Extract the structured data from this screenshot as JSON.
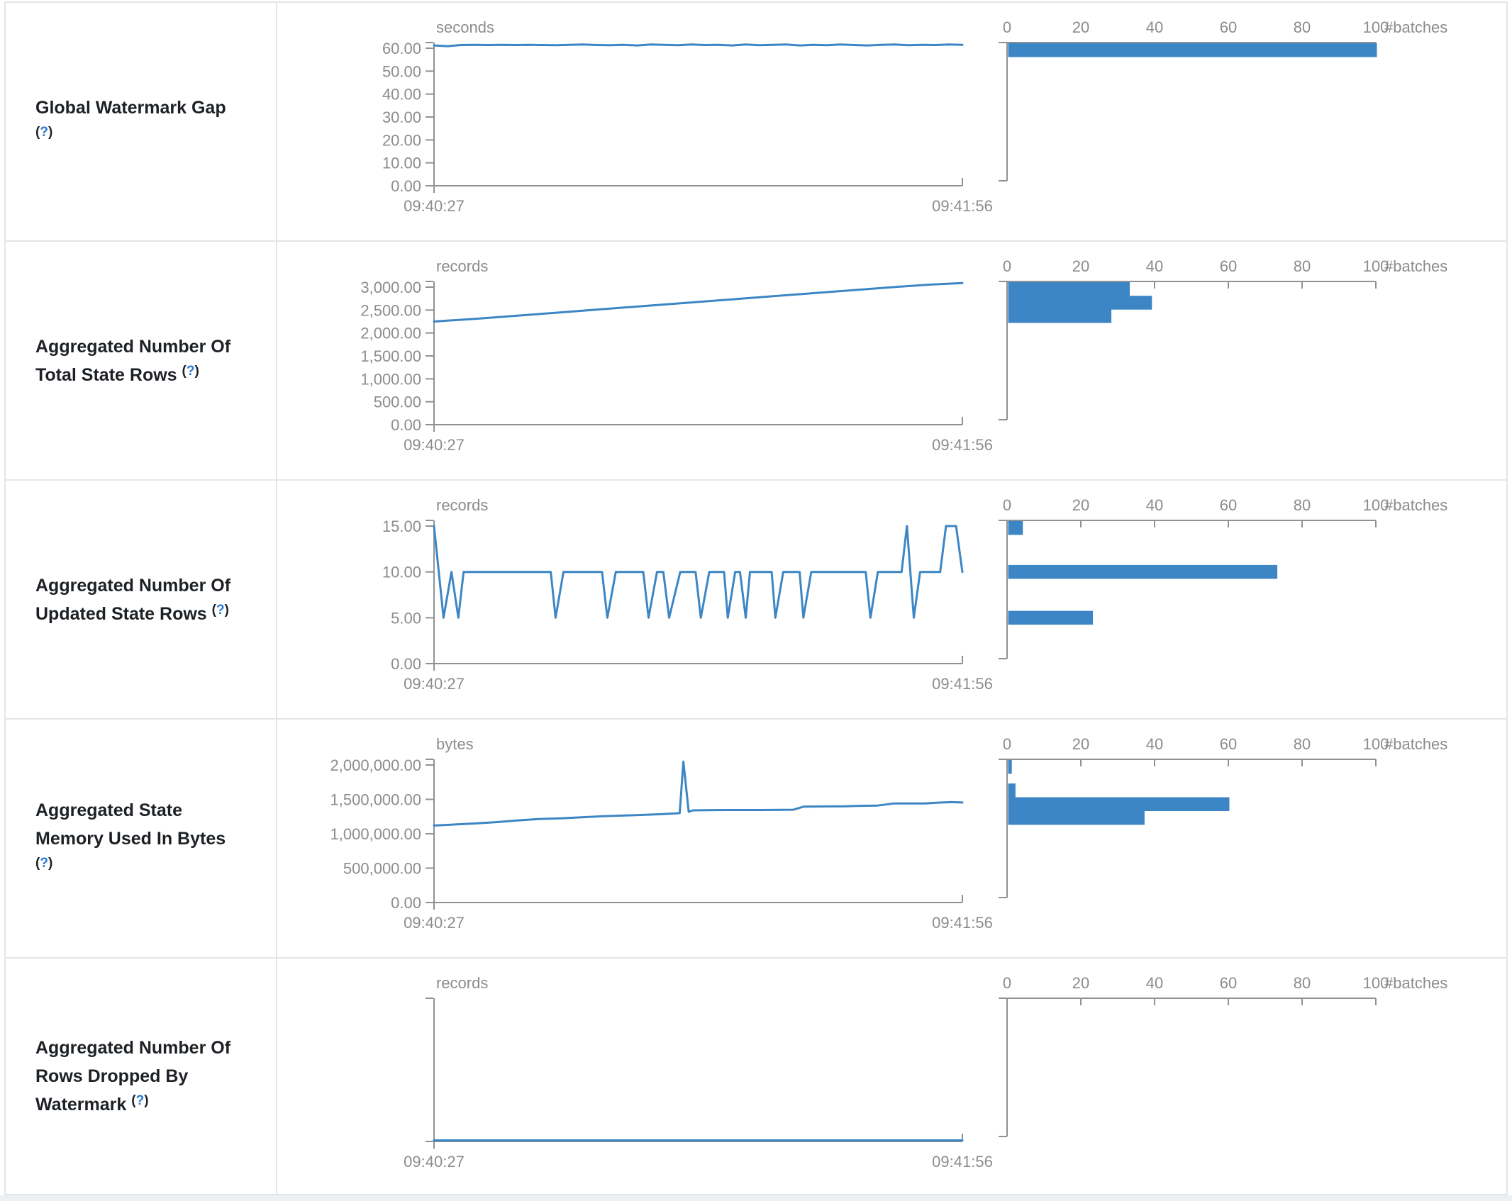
{
  "colors": {
    "series": "#3c86c5",
    "axis": "#8f9294",
    "tick_text": "#8c8c8c",
    "label_text": "#1d2125",
    "help_link": "#2478d4",
    "border": "#e3e6e9"
  },
  "rows": [
    {
      "label": "Global Watermark Gap",
      "help_open": "(",
      "help_symbol": "?",
      "help_close": ")"
    },
    {
      "label": "Aggregated Number Of Total State Rows",
      "help_open": "(",
      "help_symbol": "?",
      "help_close": ")"
    },
    {
      "label": "Aggregated Number Of Updated State Rows",
      "help_open": "(",
      "help_symbol": "?",
      "help_close": ")"
    },
    {
      "label": "Aggregated State Memory Used In Bytes",
      "help_open": "(",
      "help_symbol": "?",
      "help_close": ")"
    },
    {
      "label": "Aggregated Number Of Rows Dropped By Watermark",
      "help_open": "(",
      "help_symbol": "?",
      "help_close": ")"
    }
  ],
  "chart_data": [
    {
      "title": "Global Watermark Gap",
      "type": "line",
      "unit": "seconds",
      "x_ticks": [
        "09:40:27",
        "09:41:56"
      ],
      "y_ticks": [
        60,
        50,
        40,
        30,
        20,
        10,
        0
      ],
      "y_tick_labels": [
        "60.00",
        "50.00",
        "40.00",
        "30.00",
        "20.00",
        "10.00",
        "0.00"
      ],
      "points": {
        "v": [
          61.2,
          60.9,
          61.4,
          61.5,
          61.4,
          61.5,
          61.4,
          61.5,
          61.4,
          61.3,
          61.5,
          61.6,
          61.4,
          61.3,
          61.5,
          61.2,
          61.6,
          61.5,
          61.3,
          61.6,
          61.4,
          61.5,
          61.2,
          61.6,
          61.3,
          61.5,
          61.6,
          61.2,
          61.5,
          61.3,
          61.6,
          61.4,
          61.2,
          61.5,
          61.6,
          61.3,
          61.5,
          61.4,
          61.6,
          61.5
        ]
      },
      "histogram": {
        "type": "bar",
        "unit": "#batches",
        "x_ticks": [
          0,
          20,
          40,
          60,
          80,
          100
        ],
        "bins": [
          {
            "value": 61,
            "count": 100
          }
        ]
      }
    },
    {
      "title": "Aggregated Number Of Total State Rows",
      "type": "line",
      "unit": "records",
      "x_ticks": [
        "09:40:27",
        "09:41:56"
      ],
      "y_ticks": [
        3000,
        2500,
        2000,
        1500,
        1000,
        500,
        0
      ],
      "y_tick_labels": [
        "3,000.00",
        "2,500.00",
        "2,000.00",
        "1,500.00",
        "1,000.00",
        "500.00",
        "0.00"
      ],
      "points": {
        "t": [
          0,
          0.08,
          0.16,
          0.24,
          0.32,
          0.4,
          0.48,
          0.56,
          0.64,
          0.72,
          0.8,
          0.88,
          0.94,
          1
        ],
        "v": [
          2250,
          2310,
          2380,
          2450,
          2520,
          2590,
          2660,
          2730,
          2800,
          2870,
          2940,
          3010,
          3055,
          3090
        ]
      },
      "histogram": {
        "type": "bar",
        "unit": "#batches",
        "x_ticks": [
          0,
          20,
          40,
          60,
          80,
          100
        ],
        "bins": [
          {
            "value": 2960,
            "count": 33
          },
          {
            "value": 2660,
            "count": 39
          },
          {
            "value": 2370,
            "count": 28
          }
        ]
      }
    },
    {
      "title": "Aggregated Number Of Updated State Rows",
      "type": "line",
      "unit": "records",
      "x_ticks": [
        "09:40:27",
        "09:41:56"
      ],
      "y_ticks": [
        15,
        10,
        5,
        0
      ],
      "y_tick_labels": [
        "15.00",
        "10.00",
        "5.00",
        "0.00"
      ],
      "points": {
        "t": [
          0,
          0.018,
          0.033,
          0.046,
          0.056,
          0.221,
          0.23,
          0.245,
          0.318,
          0.328,
          0.344,
          0.396,
          0.406,
          0.422,
          0.434,
          0.445,
          0.466,
          0.495,
          0.505,
          0.521,
          0.549,
          0.556,
          0.57,
          0.579,
          0.59,
          0.598,
          0.639,
          0.646,
          0.661,
          0.692,
          0.699,
          0.714,
          0.817,
          0.826,
          0.84,
          0.885,
          0.895,
          0.908,
          0.92,
          0.958,
          0.969,
          0.988,
          1
        ],
        "v": [
          15,
          5,
          10,
          5,
          10,
          10,
          5,
          10,
          10,
          5,
          10,
          10,
          5,
          10,
          10,
          5,
          10,
          10,
          5,
          10,
          10,
          5,
          10,
          10,
          5,
          10,
          10,
          5,
          10,
          10,
          5,
          10,
          10,
          5,
          10,
          10,
          15,
          5,
          10,
          10,
          15,
          15,
          10
        ]
      },
      "histogram": {
        "type": "bar",
        "unit": "#batches",
        "x_ticks": [
          0,
          20,
          40,
          60,
          80,
          100
        ],
        "bins": [
          {
            "value": 15,
            "count": 4
          },
          {
            "value": 10,
            "count": 73
          },
          {
            "value": 5,
            "count": 23
          }
        ]
      }
    },
    {
      "title": "Aggregated State Memory Used In Bytes",
      "type": "line",
      "unit": "bytes",
      "x_ticks": [
        "09:40:27",
        "09:41:56"
      ],
      "y_ticks": [
        2000000,
        1500000,
        1000000,
        500000,
        0
      ],
      "y_tick_labels": [
        "2,000,000.00",
        "1,500,000.00",
        "1,000,000.00",
        "500,000.00",
        "0.00"
      ],
      "points": {
        "t": [
          0,
          0.04,
          0.08,
          0.12,
          0.16,
          0.2,
          0.24,
          0.28,
          0.32,
          0.36,
          0.4,
          0.43,
          0.455,
          0.465,
          0.472,
          0.482,
          0.49,
          0.55,
          0.62,
          0.68,
          0.7,
          0.78,
          0.8,
          0.84,
          0.87,
          0.93,
          0.95,
          0.98,
          1
        ],
        "v": [
          1120000,
          1135000,
          1150000,
          1170000,
          1195000,
          1215000,
          1225000,
          1240000,
          1255000,
          1265000,
          1275000,
          1285000,
          1295000,
          1300000,
          2050000,
          1320000,
          1340000,
          1345000,
          1345000,
          1350000,
          1395000,
          1400000,
          1405000,
          1410000,
          1440000,
          1440000,
          1450000,
          1460000,
          1455000
        ]
      },
      "histogram": {
        "type": "bar",
        "unit": "#batches",
        "x_ticks": [
          0,
          20,
          40,
          60,
          80,
          100
        ],
        "bins": [
          {
            "value": 2050000,
            "count": 1
          },
          {
            "value": 1630000,
            "count": 2
          },
          {
            "value": 1430000,
            "count": 60
          },
          {
            "value": 1230000,
            "count": 37
          }
        ]
      }
    },
    {
      "title": "Aggregated Number Of Rows Dropped By Watermark",
      "type": "line",
      "unit": "records",
      "x_ticks": [
        "09:40:27",
        "09:41:56"
      ],
      "y_ticks": [],
      "y_tick_labels": [],
      "points": {
        "t": [
          0,
          1
        ],
        "v": [
          0,
          0
        ]
      },
      "histogram": {
        "type": "bar",
        "unit": "#batches",
        "x_ticks": [
          0,
          20,
          40,
          60,
          80,
          100
        ],
        "bins": []
      }
    }
  ]
}
